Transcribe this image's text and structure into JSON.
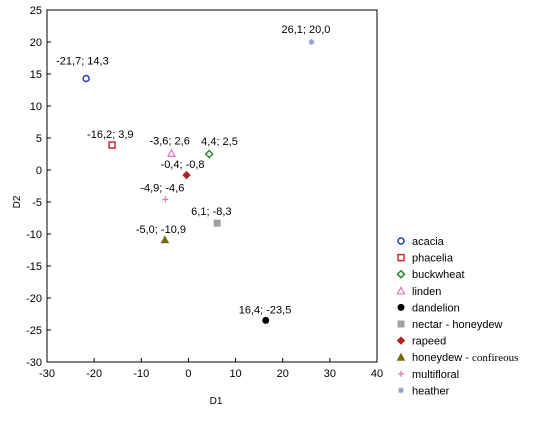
{
  "chart_data": {
    "type": "scatter",
    "title": "",
    "xlabel": "D1",
    "ylabel": "D2",
    "xlim": [
      -30,
      40
    ],
    "ylim": [
      -30,
      25
    ],
    "xticks": [
      -30,
      -20,
      -10,
      0,
      10,
      20,
      30,
      40
    ],
    "yticks": [
      -30,
      -25,
      -20,
      -15,
      -10,
      -5,
      0,
      5,
      10,
      15,
      20,
      25
    ],
    "grid": false,
    "legend_position": "right",
    "series": [
      {
        "name": "acacia",
        "x": -21.7,
        "y": 14.3,
        "label": "-21,7; 14,3",
        "marker": "circle-open",
        "color": "#1f3fbf"
      },
      {
        "name": "phacelia",
        "x": -16.2,
        "y": 3.9,
        "label": "-16,2; 3,9",
        "marker": "square-open",
        "color": "#d62728"
      },
      {
        "name": "buckwheat",
        "x": 4.4,
        "y": 2.5,
        "label": "4,4; 2,5",
        "marker": "diamond-open",
        "color": "#2a8a2a"
      },
      {
        "name": "linden",
        "x": -3.6,
        "y": 2.6,
        "label": "-3,6; 2,6",
        "marker": "triangle-open",
        "color": "#e377c2"
      },
      {
        "name": "dandelion",
        "x": 16.4,
        "y": -23.5,
        "label": "16,4; -23,5",
        "marker": "circle-filled",
        "color": "#000000"
      },
      {
        "name": "nectar - honeydew",
        "x": 6.1,
        "y": -8.3,
        "label": "6,1; -8,3",
        "marker": "square-filled",
        "color": "#a0a0a0"
      },
      {
        "name": "rapeed",
        "x": -0.4,
        "y": -0.8,
        "label": "-0,4; -0,8",
        "marker": "diamond-filled",
        "color": "#b22222"
      },
      {
        "name": "honeydew - confireous",
        "x": -5.0,
        "y": -10.9,
        "label": "-5,0; -10,9",
        "marker": "triangle-filled",
        "color": "#7a6a10"
      },
      {
        "name": "multifloral",
        "x": -4.9,
        "y": -4.6,
        "label": "-4,9; -4,6",
        "marker": "plus",
        "color": "#e377c2"
      },
      {
        "name": "heather",
        "x": 26.1,
        "y": 20.0,
        "label": "26,1; 20,0",
        "marker": "star",
        "color": "#8da0cb"
      }
    ]
  }
}
